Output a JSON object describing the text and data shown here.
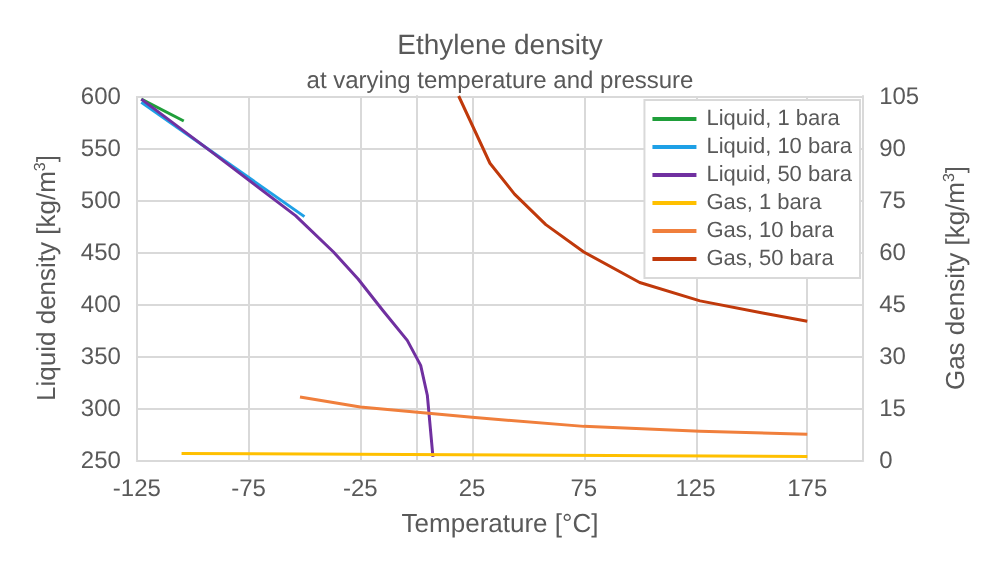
{
  "chart_data": {
    "type": "line",
    "title": "Ethylene density",
    "subtitle": "at varying temperature and pressure",
    "xlabel": "Temperature [°C]",
    "ylabel": "Liquid density [kg/m$^{3}$]",
    "y2label": "Gas density [kg/m$^{3}$]",
    "xlim": [
      -125,
      200
    ],
    "xticks": [
      -125,
      -75,
      -25,
      25,
      75,
      125,
      175
    ],
    "ylim": [
      250,
      600
    ],
    "yticks": [
      250,
      300,
      350,
      400,
      450,
      500,
      550,
      600
    ],
    "y2lim": [
      0,
      105
    ],
    "y2ticks": [
      0,
      15,
      30,
      45,
      60,
      75,
      90,
      105
    ],
    "grid": true,
    "legend": "top right",
    "marker": "none",
    "line_style": "solid",
    "series": [
      {
        "name": "Liquid, 1 bara",
        "color": "#1f9e3a",
        "x": [
          -123,
          -104
        ],
        "values": [
          597,
          576
        ]
      },
      {
        "name": "Liquid, 10 bara",
        "color": "#1ea0e6",
        "x": [
          -123,
          -50
        ],
        "values": [
          594,
          484
        ]
      },
      {
        "name": "Liquid, 50 bara",
        "color": "#7030a0",
        "x": [
          -123,
          -92,
          -54,
          -37,
          -26,
          -15,
          -4,
          2,
          5,
          7.5
        ],
        "values": [
          597,
          547,
          485,
          450,
          424,
          394,
          365,
          341,
          312,
          253
        ]
      },
      {
        "name": "Gas, 1 bara",
        "color": "#ffc000",
        "axis": "y2",
        "x": [
          -105,
          175
        ],
        "values": [
          1.9,
          1.0
        ]
      },
      {
        "name": "Gas, 10 bara",
        "color": "#f07f3c",
        "axis": "y2",
        "x": [
          -52,
          -25,
          25,
          75,
          127,
          175
        ],
        "values": [
          18.2,
          15.3,
          12.3,
          9.7,
          8.3,
          7.4
        ]
      },
      {
        "name": "Gas, 50 bara",
        "color": "#c0390b",
        "axis": "y2",
        "x": [
          19,
          33,
          44,
          58,
          75,
          100,
          127,
          155,
          175
        ],
        "values": [
          105,
          85.6,
          76.7,
          67.9,
          60,
          51.2,
          45.9,
          42.4,
          40
        ]
      }
    ]
  }
}
